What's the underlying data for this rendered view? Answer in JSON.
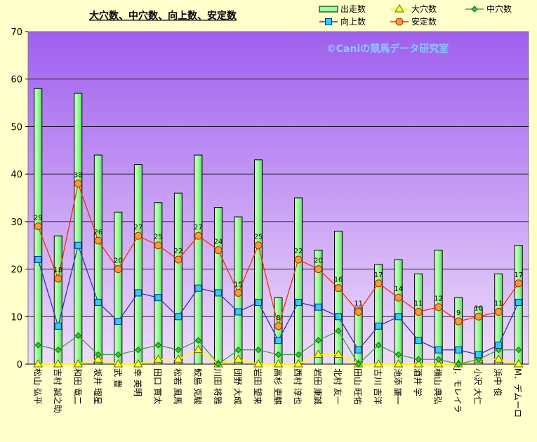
{
  "chart_data": {
    "type": "bar",
    "title": "大穴数、中穴数、向上数、安定数",
    "watermark": "©Caniの競馬データ研究室",
    "ylim": [
      0,
      70
    ],
    "yticks": [
      0,
      10,
      20,
      30,
      40,
      50,
      60,
      70
    ],
    "grid": true,
    "legend_position": "top-right",
    "categories": [
      "松山 弘平",
      "吉村 誠之助",
      "和田 竜二",
      "坂井 瑠星",
      "武 豊",
      "幸 英明",
      "田口 貫太",
      "松若 風馬",
      "鮫島 克駿",
      "川田 将雅",
      "団野 大成",
      "岩田 望来",
      "高杉 吏麒",
      "西村 淳也",
      "岩田 康誠",
      "北村 友一",
      "田山 旺佑",
      "古川 吉洋",
      "池添 謙一",
      "酒井 学",
      "横山 典弘",
      "J．モレイラ",
      "小沢 大仁",
      "浜中 俊",
      "M．デムーロ"
    ],
    "series": [
      {
        "name": "出走数",
        "kind": "bar",
        "color": "#99ff99",
        "values": [
          58,
          27,
          57,
          44,
          32,
          42,
          34,
          36,
          44,
          33,
          31,
          43,
          14,
          35,
          24,
          28,
          12,
          21,
          22,
          19,
          24,
          14,
          12,
          19,
          25
        ]
      },
      {
        "name": "大穴数",
        "kind": "line",
        "color": "#ffff00",
        "values": [
          0,
          0,
          0,
          1,
          0,
          0,
          1,
          1,
          3,
          0,
          1,
          0,
          0,
          0,
          2,
          2,
          0,
          0,
          0,
          0,
          0,
          0,
          1,
          1,
          0
        ]
      },
      {
        "name": "中穴数",
        "kind": "line",
        "color": "#33aa33",
        "values": [
          4,
          3,
          6,
          2,
          2,
          3,
          4,
          3,
          5,
          0,
          3,
          3,
          2,
          2,
          5,
          7,
          0,
          4,
          2,
          1,
          1,
          0,
          1,
          3,
          3
        ]
      },
      {
        "name": "向上数",
        "kind": "line",
        "color": "#2233cc",
        "values": [
          22,
          8,
          25,
          13,
          9,
          15,
          14,
          10,
          16,
          15,
          11,
          13,
          5,
          13,
          12,
          10,
          3,
          8,
          10,
          5,
          3,
          3,
          2,
          4,
          13
        ]
      },
      {
        "name": "安定数",
        "kind": "line",
        "color": "#ee3300",
        "values": [
          29,
          18,
          38,
          26,
          20,
          27,
          25,
          22,
          27,
          24,
          15,
          25,
          8,
          22,
          20,
          16,
          11,
          17,
          14,
          11,
          12,
          9,
          10,
          11,
          17
        ]
      }
    ],
    "data_labels_series": "安定数"
  },
  "colors": {
    "background": "#ffffcc",
    "plot_top": "#9f5fee",
    "plot_bottom": "#eeddfb"
  },
  "icons": {
    "bar_marker": "green-bar-swatch",
    "大穴数": "yellow-triangle-icon",
    "中穴数": "green-diamond-icon",
    "向上数": "cyan-square-icon",
    "安定数": "orange-circle-icon"
  }
}
